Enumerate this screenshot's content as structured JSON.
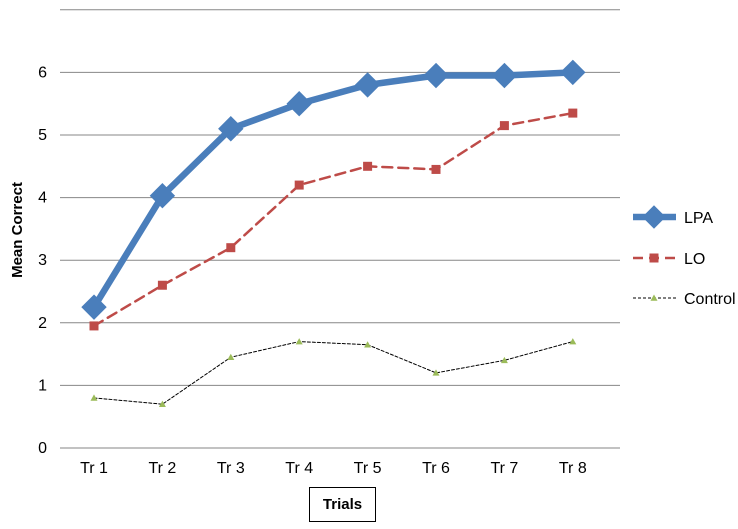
{
  "chart_data": {
    "type": "line",
    "categories": [
      "Tr 1",
      "Tr 2",
      "Tr 3",
      "Tr 4",
      "Tr 5",
      "Tr 6",
      "Tr 7",
      "Tr 8"
    ],
    "series": [
      {
        "name": "LPA",
        "values": [
          2.25,
          4.03,
          5.1,
          5.5,
          5.8,
          5.95,
          5.95,
          6.0
        ],
        "color": "#4A7EBB",
        "style": "solid-thick",
        "marker": "diamond"
      },
      {
        "name": "LO",
        "values": [
          1.95,
          2.6,
          3.2,
          4.2,
          4.5,
          4.45,
          5.15,
          5.35
        ],
        "color": "#BE4B48",
        "style": "dashed",
        "marker": "square"
      },
      {
        "name": "Control",
        "values": [
          0.8,
          0.7,
          1.45,
          1.7,
          1.65,
          1.2,
          1.4,
          1.7
        ],
        "color": "#000000",
        "style": "dotted",
        "marker": "triangle",
        "marker_color": "#9BBB59"
      }
    ],
    "xlabel": "Trials",
    "ylabel": "Mean Correct",
    "ylim": [
      0,
      7
    ],
    "yticks": [
      0,
      1,
      2,
      3,
      4,
      5,
      6
    ],
    "grid": "horizontal",
    "legend": "right"
  }
}
